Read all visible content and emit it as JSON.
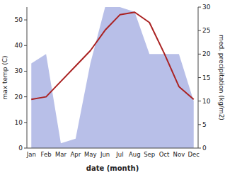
{
  "chart_data": {
    "type": "line",
    "xlabel": "date (month)",
    "ylabel": "max temp (C)",
    "y2label": "med. precipitation (kg/m2)",
    "categories": [
      "Jan",
      "Feb",
      "Mar",
      "Apr",
      "May",
      "Jun",
      "Jul",
      "Aug",
      "Sep",
      "Oct",
      "Nov",
      "Dec"
    ],
    "series": [
      {
        "type": "area",
        "axis": "y2",
        "color": "#b8bfe8",
        "values": [
          18,
          20,
          1,
          2,
          18,
          30,
          30,
          29,
          20,
          20,
          20,
          10
        ]
      },
      {
        "type": "line",
        "color": "#aa2222",
        "values": [
          19,
          20,
          26,
          32,
          38,
          46,
          52,
          53,
          49,
          37,
          24,
          19
        ]
      }
    ],
    "ylim": [
      0,
      55
    ],
    "yticks": [
      0,
      10,
      20,
      30,
      40,
      50
    ],
    "y2lim": [
      0,
      30
    ],
    "y2ticks": [
      0,
      5,
      10,
      15,
      20,
      25,
      30
    ]
  }
}
